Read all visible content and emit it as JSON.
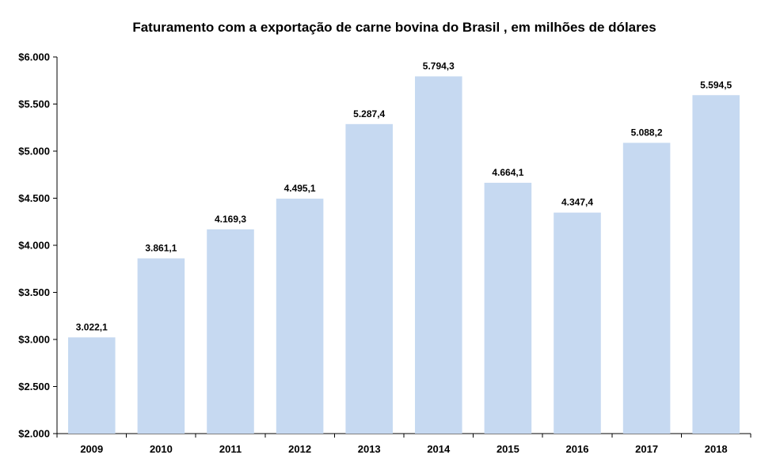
{
  "chart_data": {
    "type": "bar",
    "title": "Faturamento com a  exportação de carne bovina do  Brasil , em milhões de dólares",
    "xlabel": "",
    "ylabel": "",
    "categories": [
      "2009",
      "2010",
      "2011",
      "2012",
      "2013",
      "2014",
      "2015",
      "2016",
      "2017",
      "2018"
    ],
    "values": [
      3022.1,
      3861.1,
      4169.3,
      4495.1,
      5287.4,
      5794.3,
      4664.1,
      4347.4,
      5088.2,
      5594.5
    ],
    "value_labels": [
      "3.022,1",
      "3.861,1",
      "4.169,3",
      "4.495,1",
      "5.287,4",
      "5.794,3",
      "4.664,1",
      "4.347,4",
      "5.088,2",
      "5.594,5"
    ],
    "ylim": [
      2000,
      6000
    ],
    "y_ticks": [
      2000,
      2500,
      3000,
      3500,
      4000,
      4500,
      5000,
      5500,
      6000
    ],
    "y_tick_labels": [
      "$2.000",
      "$2.500",
      "$3.000",
      "$3.500",
      "$4.000",
      "$4.500",
      "$5.000",
      "$5.500",
      "$6.000"
    ],
    "grid": false,
    "legend": "none",
    "bar_color": "#c6d9f1"
  }
}
